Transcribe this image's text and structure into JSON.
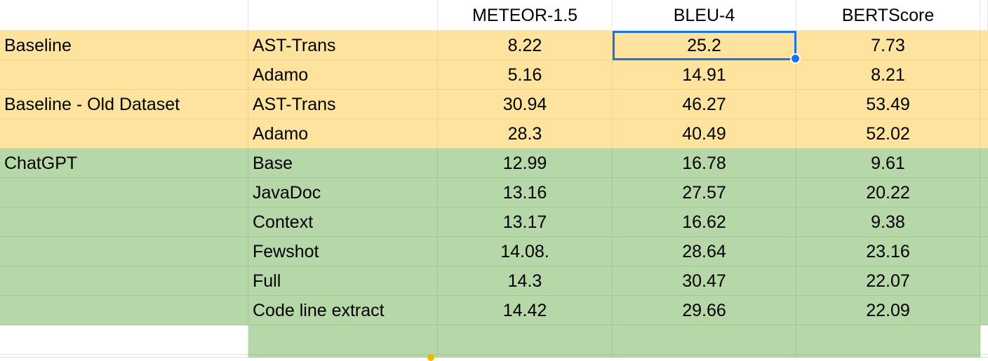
{
  "columns": [
    "",
    "",
    "METEOR-1.5",
    "BLEU-4",
    "BERTScore"
  ],
  "rows": [
    {
      "group": "Baseline",
      "model": "AST-Trans",
      "meteor": "8.22",
      "bleu": "25.2",
      "bert": "7.73",
      "fill": "yellow"
    },
    {
      "group": "",
      "model": "Adamo",
      "meteor": "5.16",
      "bleu": "14.91",
      "bert": "8.21",
      "fill": "yellow"
    },
    {
      "group": "Baseline - Old Dataset",
      "model": "AST-Trans",
      "meteor": "30.94",
      "bleu": "46.27",
      "bert": "53.49",
      "fill": "yellow"
    },
    {
      "group": "",
      "model": "Adamo",
      "meteor": "28.3",
      "bleu": "40.49",
      "bert": "52.02",
      "fill": "yellow"
    },
    {
      "group": "ChatGPT",
      "model": "Base",
      "meteor": "12.99",
      "bleu": "16.78",
      "bert": "9.61",
      "fill": "green"
    },
    {
      "group": "",
      "model": "JavaDoc",
      "meteor": "13.16",
      "bleu": "27.57",
      "bert": "20.22",
      "fill": "green"
    },
    {
      "group": "",
      "model": "Context",
      "meteor": "13.17",
      "bleu": "16.62",
      "bert": "9.38",
      "fill": "green"
    },
    {
      "group": "",
      "model": "Fewshot",
      "meteor": "14.08.",
      "bleu": "28.64",
      "bert": "23.16",
      "fill": "green"
    },
    {
      "group": "",
      "model": "Full",
      "meteor": "14.3",
      "bleu": "30.47",
      "bert": "22.07",
      "fill": "green"
    },
    {
      "group": "",
      "model": "Code line extract",
      "meteor": "14.42",
      "bleu": "29.66",
      "bert": "22.09",
      "fill": "green"
    }
  ],
  "selected_cell": {
    "row": 0,
    "col": "bleu"
  },
  "colors": {
    "yellow": "#fde39d",
    "green": "#b6d7a8",
    "selection": "#1a73e8"
  }
}
